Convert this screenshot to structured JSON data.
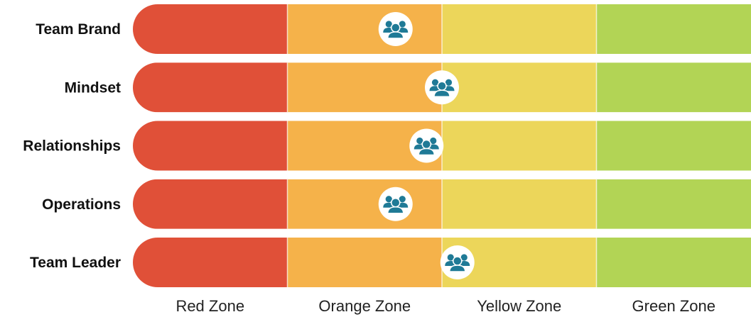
{
  "chart_data": {
    "type": "bar",
    "categories": [
      "Team Brand",
      "Mindset",
      "Relationships",
      "Operations",
      "Team Leader"
    ],
    "zones": [
      "Red Zone",
      "Orange Zone",
      "Yellow Zone",
      "Green Zone"
    ],
    "zone_colors": [
      "#e05038",
      "#f5b24a",
      "#ecd65a",
      "#b2d455"
    ],
    "xlim": [
      0,
      4
    ],
    "values": [
      1.7,
      2.0,
      1.9,
      1.7,
      2.1
    ],
    "marker": {
      "icon": "team-group-icon",
      "color": "#1f7a96",
      "background": "#ffffff"
    }
  }
}
